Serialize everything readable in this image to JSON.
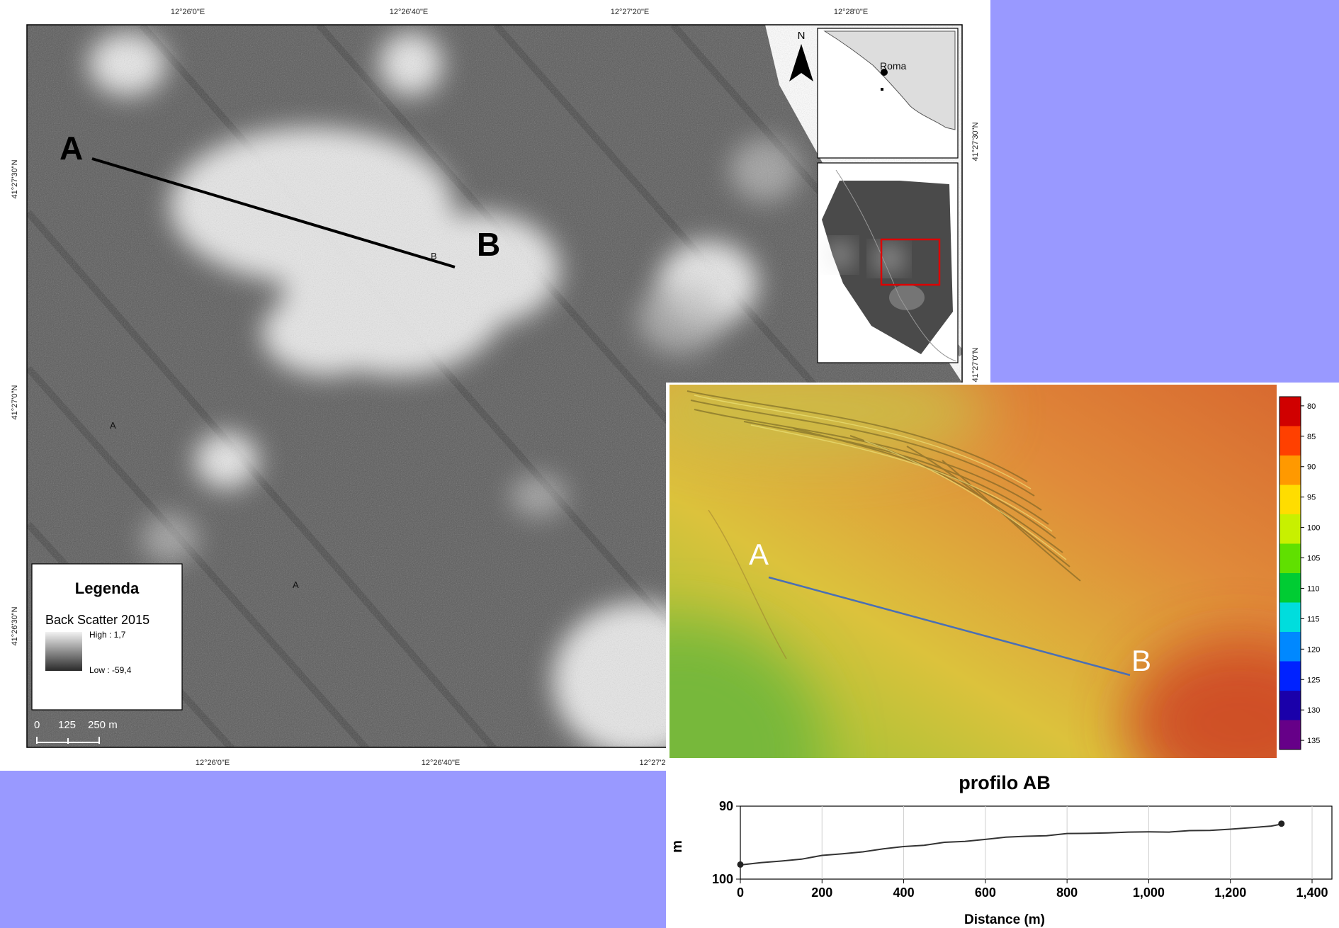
{
  "backscatter_map": {
    "top_ticks": [
      "12°26'0\"E",
      "12°26'40\"E",
      "12°27'20\"E",
      "12°28'0\"E"
    ],
    "bottom_ticks": [
      "12°26'0\"E",
      "12°26'40\"E",
      "12°27'2"
    ],
    "left_ticks": [
      "41°27'30\"N",
      "41°27'0\"N",
      "41°26'30\"N"
    ],
    "right_ticks": [
      "41°27'30\"N",
      "41°27'0\"N"
    ],
    "label_a": "A",
    "label_b": "B",
    "small_labels": [
      "A",
      "A",
      "B"
    ],
    "north_label": "N",
    "inset_city": "Roma",
    "legend": {
      "title": "Legenda",
      "layer": "Back Scatter 2015",
      "high": "High : 1,7",
      "low": "Low : -59,4"
    },
    "scalebar": [
      "0",
      "125",
      "250 m"
    ]
  },
  "bathymetry_map": {
    "label_a": "A",
    "label_b": "B",
    "colorbar_ticks": [
      "80",
      "85",
      "90",
      "95",
      "100",
      "105",
      "110",
      "115",
      "120",
      "125",
      "130",
      "135"
    ],
    "colorbar_colors": [
      "#d00000",
      "#ff4000",
      "#ff9900",
      "#ffdd00",
      "#c8f000",
      "#60e000",
      "#00cc33",
      "#00dddd",
      "#0088ff",
      "#0022ff",
      "#1a00aa",
      "#660088"
    ],
    "surface_colors": {
      "green": "#8fc233",
      "yellow": "#dcc23c",
      "orange": "#e08a3a",
      "red": "#d24a2a"
    }
  },
  "chart_data": {
    "type": "line",
    "title": "profilo AB",
    "xlabel": "Distance (m)",
    "ylabel": "m",
    "xlim": [
      0,
      1400
    ],
    "ylim": [
      100,
      90
    ],
    "x_ticks": [
      "0",
      "200",
      "400",
      "600",
      "800",
      "1,000",
      "1,200",
      "1,400"
    ],
    "y_ticks": [
      "90",
      "100"
    ],
    "grid": true,
    "x": [
      0,
      50,
      100,
      150,
      200,
      250,
      300,
      350,
      400,
      450,
      500,
      550,
      600,
      650,
      700,
      750,
      800,
      850,
      900,
      950,
      1000,
      1050,
      1100,
      1150,
      1200,
      1250,
      1300,
      1325
    ],
    "y": [
      98.0,
      97.8,
      97.5,
      97.2,
      96.8,
      96.5,
      96.2,
      95.9,
      95.5,
      95.3,
      95.0,
      94.8,
      94.5,
      94.3,
      94.1,
      94.0,
      93.8,
      93.7,
      93.6,
      93.6,
      93.5,
      93.5,
      93.4,
      93.3,
      93.1,
      93.0,
      92.7,
      92.4
    ]
  }
}
